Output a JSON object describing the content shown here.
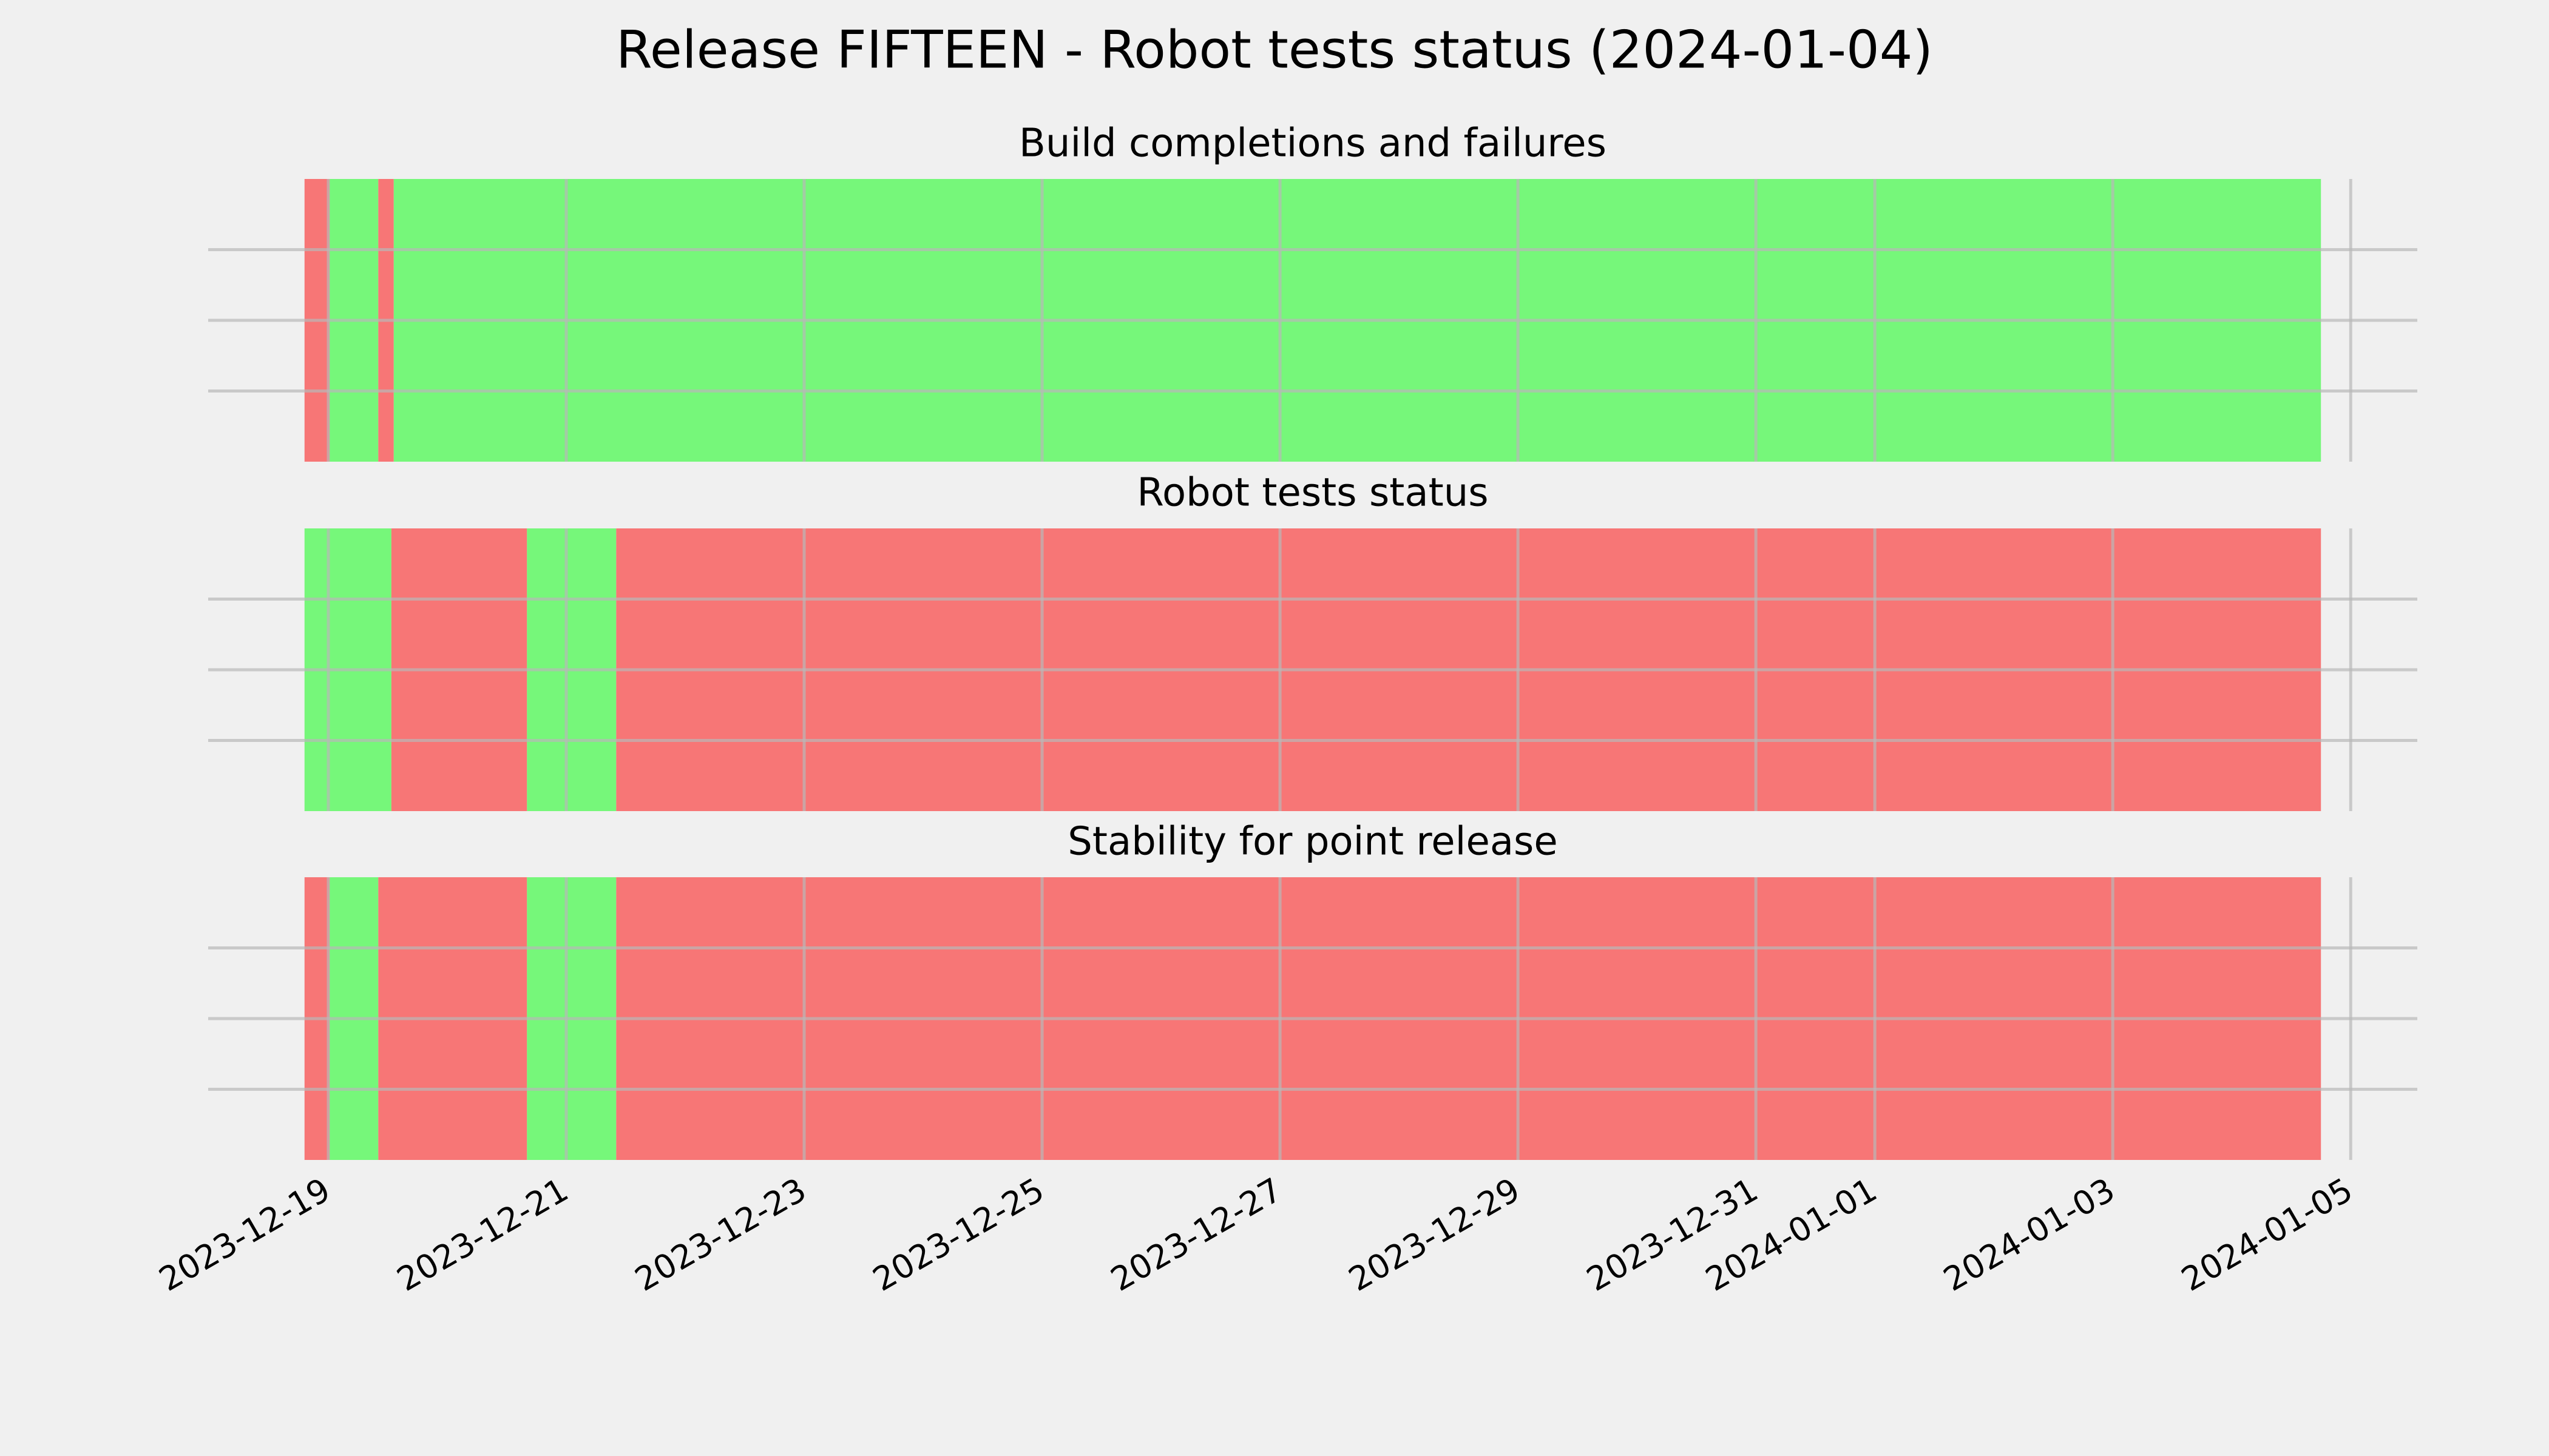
{
  "chart_data": {
    "type": "timeline",
    "title": "Release FIFTEEN - Robot tests status (2024-01-04)",
    "xlim": [
      -1.01,
      17.56
    ],
    "xticks": [
      {
        "value": 0,
        "label": "2023-12-19"
      },
      {
        "value": 2,
        "label": "2023-12-21"
      },
      {
        "value": 4,
        "label": "2023-12-23"
      },
      {
        "value": 6,
        "label": "2023-12-25"
      },
      {
        "value": 8,
        "label": "2023-12-27"
      },
      {
        "value": 10,
        "label": "2023-12-29"
      },
      {
        "value": 12,
        "label": "2023-12-31"
      },
      {
        "value": 13,
        "label": "2024-01-01"
      },
      {
        "value": 15,
        "label": "2024-01-03"
      },
      {
        "value": 17,
        "label": "2024-01-05"
      }
    ],
    "ylim": [
      0,
      1
    ],
    "yticks": [
      0.25,
      0.5,
      0.75
    ],
    "grid": true,
    "panels": [
      {
        "title": "Build completions and failures",
        "segments": [
          {
            "start": -0.2,
            "end": 0.01,
            "color": "#f77676"
          },
          {
            "start": 0.01,
            "end": 0.42,
            "color": "#76f77a"
          },
          {
            "start": 0.42,
            "end": 0.55,
            "color": "#f77676"
          },
          {
            "start": 0.55,
            "end": 16.75,
            "color": "#76f77a"
          }
        ]
      },
      {
        "title": "Robot tests status",
        "segments": [
          {
            "start": -0.2,
            "end": 0.53,
            "color": "#76f77a"
          },
          {
            "start": 0.53,
            "end": 1.67,
            "color": "#f77676"
          },
          {
            "start": 1.67,
            "end": 2.42,
            "color": "#76f77a"
          },
          {
            "start": 2.42,
            "end": 16.75,
            "color": "#f77676"
          }
        ]
      },
      {
        "title": "Stability for point release",
        "segments": [
          {
            "start": -0.2,
            "end": 0.01,
            "color": "#f77676"
          },
          {
            "start": 0.01,
            "end": 0.42,
            "color": "#76f77a"
          },
          {
            "start": 0.42,
            "end": 1.67,
            "color": "#f77676"
          },
          {
            "start": 1.67,
            "end": 2.42,
            "color": "#76f77a"
          },
          {
            "start": 2.42,
            "end": 16.75,
            "color": "#f77676"
          }
        ]
      }
    ]
  }
}
